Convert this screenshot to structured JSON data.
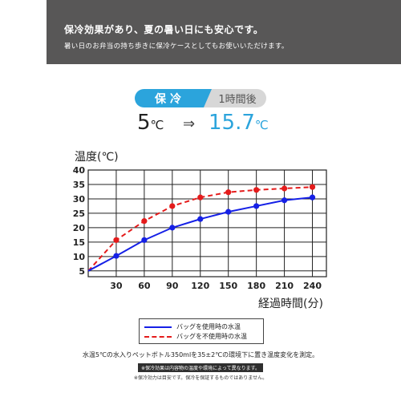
{
  "header": {
    "title": "保冷効果があり、夏の暑い日にも安心です。",
    "subtitle": "暑い日のお弁当の持ち歩きに保冷ケースとしてもお使いいただけます。"
  },
  "badge": {
    "left": "保冷",
    "right": "1時間後"
  },
  "temps": {
    "from": "5",
    "from_unit": "℃",
    "arrow": "⇒",
    "to": "15.7",
    "to_unit": "℃"
  },
  "chart_data": {
    "type": "line",
    "ylabel": "温度(℃)",
    "xlabel": "経過時間(分)",
    "x": [
      0,
      30,
      60,
      90,
      120,
      150,
      180,
      210,
      240
    ],
    "xticks": [
      "30",
      "60",
      "90",
      "120",
      "150",
      "180",
      "210",
      "240"
    ],
    "xlim": [
      0,
      255
    ],
    "yticks": [
      "5",
      "10",
      "15",
      "20",
      "25",
      "30",
      "35",
      "40"
    ],
    "ylim": [
      3,
      40
    ],
    "grid": true,
    "series": [
      {
        "name": "バッグを使用時の水温",
        "style": "solid",
        "color": "#1520e6",
        "values": [
          5,
          10.2,
          15.7,
          20,
          23,
          25.5,
          27.5,
          29.5,
          30.5
        ]
      },
      {
        "name": "バッグを不使用時の水温",
        "style": "dashed",
        "color": "#e41b1b",
        "values": [
          5,
          15.7,
          22.3,
          27.5,
          30.5,
          32.3,
          33.1,
          33.6,
          34.1
        ]
      }
    ]
  },
  "legend": {
    "solid": "バッグを使用時の水温",
    "dashed": "バッグを不使用時の水温"
  },
  "notes": {
    "main": "水温5℃の水入りペットボトル350mlを35±2℃の環境下に置き温度変化を測定。",
    "bar": "※保冷効果は内容物の温度や環境によって異なります。",
    "small": "※保冷効力は目安です。保冷を保証するものではありません。"
  }
}
